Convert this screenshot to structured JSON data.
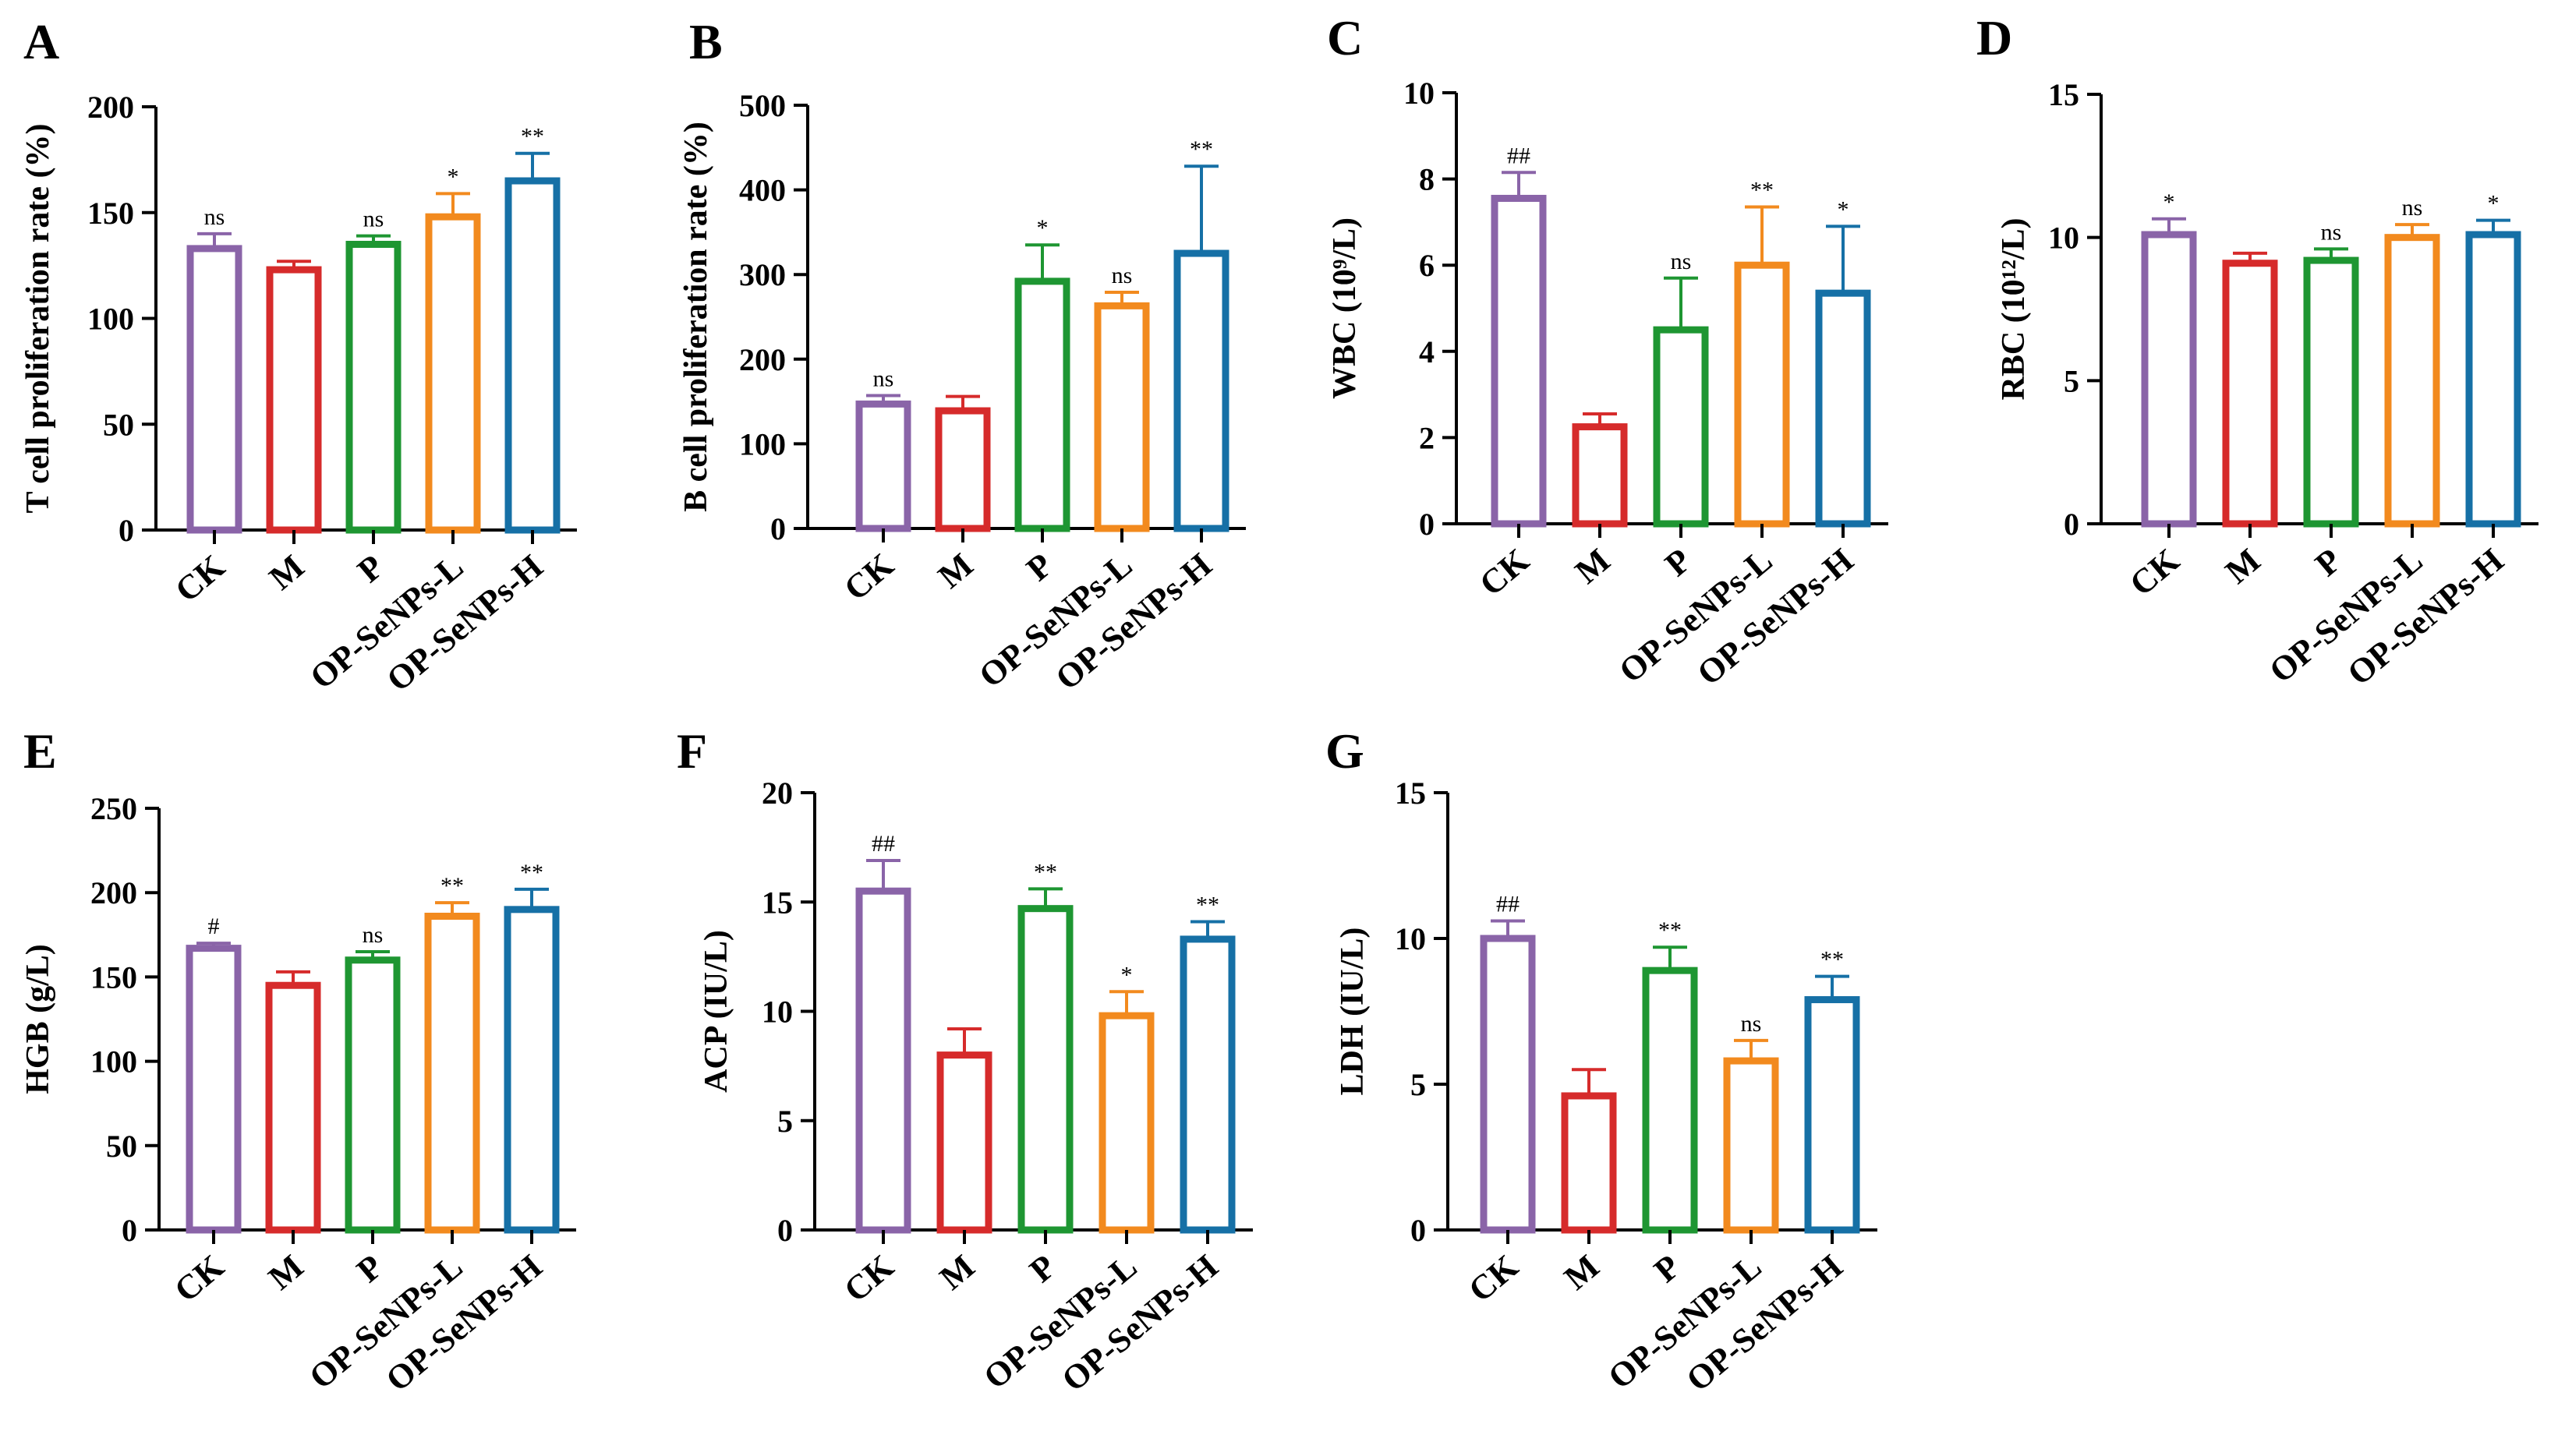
{
  "categories": [
    "CK",
    "M",
    "P",
    "OP-SeNPs-L",
    "OP-SeNPs-H"
  ],
  "colors": [
    "#8a64a8",
    "#d62b2b",
    "#1e9632",
    "#f28a1e",
    "#1670a6"
  ],
  "chart_data": [
    {
      "type": "bar",
      "panel_label": "A",
      "ylabel": "T cell proliferation rate (%)",
      "ylim": [
        0,
        200
      ],
      "yticks": [
        "0",
        "50",
        "100",
        "150",
        "200"
      ],
      "values": [
        133,
        123,
        135,
        148,
        165
      ],
      "errors": [
        7,
        4,
        4,
        11,
        13
      ],
      "annotations": [
        "ns",
        "",
        "ns",
        "*",
        "**"
      ]
    },
    {
      "type": "bar",
      "panel_label": "B",
      "ylabel": "B cell proliferation rate (%)",
      "ylim": [
        0,
        500
      ],
      "yticks": [
        "0",
        "100",
        "200",
        "300",
        "400",
        "500"
      ],
      "values": [
        147,
        139,
        292,
        263,
        325
      ],
      "errors": [
        10,
        17,
        43,
        16,
        103
      ],
      "annotations": [
        "ns",
        "",
        "*",
        "ns",
        "**"
      ]
    },
    {
      "type": "bar",
      "panel_label": "C",
      "ylabel": "WBC (10⁹/L)",
      "ylim": [
        0,
        10
      ],
      "yticks": [
        "0",
        "2",
        "4",
        "6",
        "8",
        "10"
      ],
      "values": [
        7.55,
        2.25,
        4.5,
        6.0,
        5.35
      ],
      "errors": [
        0.6,
        0.3,
        1.2,
        1.35,
        1.55
      ],
      "annotations": [
        "##",
        "",
        "ns",
        "**",
        "*"
      ]
    },
    {
      "type": "bar",
      "panel_label": "D",
      "ylabel": "RBC (10¹²/L)",
      "ylim": [
        0,
        15
      ],
      "yticks": [
        "0",
        "5",
        "10",
        "15"
      ],
      "values": [
        10.1,
        9.1,
        9.2,
        10.0,
        10.1
      ],
      "errors": [
        0.55,
        0.35,
        0.4,
        0.45,
        0.5
      ],
      "annotations": [
        "*",
        "",
        "ns",
        "ns",
        "*"
      ]
    },
    {
      "type": "bar",
      "panel_label": "E",
      "ylabel": "HGB (g/L)",
      "ylim": [
        0,
        250
      ],
      "yticks": [
        "0",
        "50",
        "100",
        "150",
        "200",
        "250"
      ],
      "values": [
        167,
        145,
        160,
        186,
        190
      ],
      "errors": [
        3,
        8,
        5,
        8,
        12
      ],
      "annotations": [
        "#",
        "",
        "ns",
        "**",
        "**"
      ]
    },
    {
      "type": "bar",
      "panel_label": "F",
      "ylabel": "ACP (IU/L)",
      "ylim": [
        0,
        20
      ],
      "yticks": [
        "0",
        "5",
        "10",
        "15",
        "20"
      ],
      "values": [
        15.5,
        8.0,
        14.7,
        9.8,
        13.3
      ],
      "errors": [
        1.4,
        1.2,
        0.9,
        1.1,
        0.8
      ],
      "annotations": [
        "##",
        "",
        "**",
        "*",
        "**"
      ]
    },
    {
      "type": "bar",
      "panel_label": "G",
      "ylabel": "LDH (IU/L)",
      "ylim": [
        0,
        15
      ],
      "yticks": [
        "0",
        "5",
        "10",
        "15"
      ],
      "values": [
        10.0,
        4.6,
        8.9,
        5.8,
        7.9
      ],
      "errors": [
        0.6,
        0.9,
        0.8,
        0.7,
        0.8
      ],
      "annotations": [
        "##",
        "",
        "**",
        "ns",
        "**"
      ]
    }
  ]
}
